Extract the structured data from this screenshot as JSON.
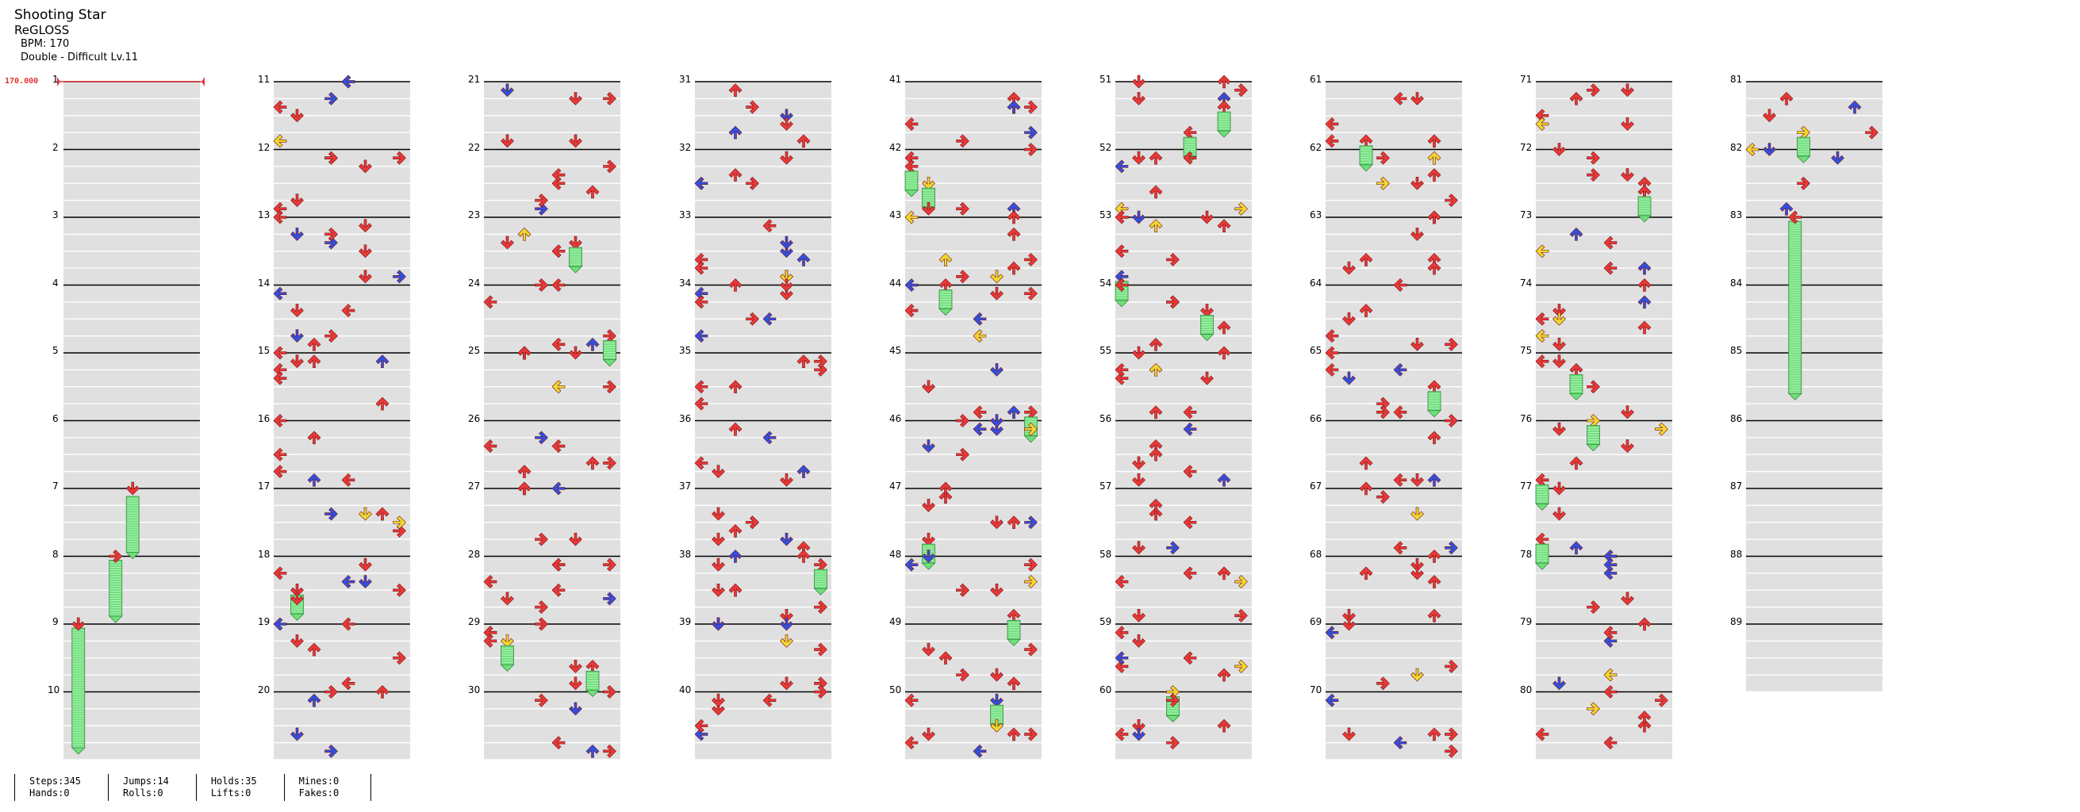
{
  "song": {
    "title": "Shooting Star",
    "artist": "ReGLOSS",
    "bpm_text": "BPM: 170",
    "difficulty_text": "Double - Difficult Lv.11"
  },
  "bpm_marker": "170.000",
  "measures": [
    "1",
    "2",
    "3",
    "4",
    "5",
    "6",
    "7",
    "8",
    "9",
    "10",
    "11",
    "12",
    "13",
    "14",
    "15",
    "16",
    "17",
    "18",
    "19",
    "20",
    "21",
    "22",
    "23",
    "24",
    "25",
    "26",
    "27",
    "28",
    "29",
    "30",
    "31",
    "32",
    "33",
    "34",
    "35",
    "36",
    "37",
    "38",
    "39",
    "40",
    "41",
    "42",
    "43",
    "44",
    "45",
    "46",
    "47",
    "48",
    "49",
    "50",
    "51",
    "52",
    "53",
    "54",
    "55",
    "56",
    "57",
    "58",
    "59",
    "60",
    "61",
    "62",
    "63",
    "64",
    "65",
    "66",
    "67",
    "68",
    "69",
    "70",
    "71",
    "72",
    "73",
    "74",
    "75",
    "76",
    "77",
    "78",
    "79",
    "80",
    "81",
    "82",
    "83",
    "84",
    "85",
    "86",
    "87",
    "88",
    "89"
  ],
  "colors": {
    "red": "#e83838",
    "blue": "#3050e0",
    "yellow": "#f0d830",
    "hold": "#6ee07a",
    "band": "#e0e0e0"
  },
  "stats": {
    "steps": "Steps:345",
    "hands": "Hands:0",
    "jumps": "Jumps:14",
    "rolls": "Rolls:0",
    "holds": "Holds:35",
    "lifts": "Lifts:0",
    "mines": "Mines:0",
    "fakes": "Fakes:0"
  }
}
